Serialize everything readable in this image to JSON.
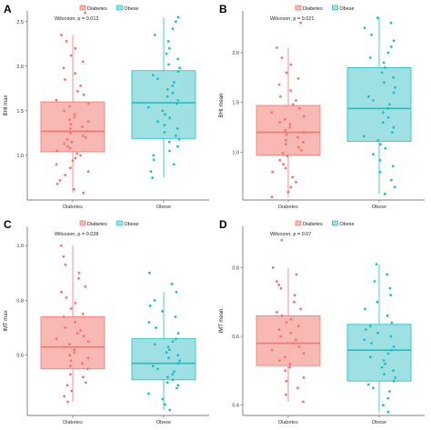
{
  "legend": {
    "entries": [
      {
        "name": "Diabetes",
        "color": "#f3766f"
      },
      {
        "name": "Obese",
        "color": "#1fbfc4"
      }
    ],
    "placement": "top"
  },
  "colors": {
    "diabetes_box_fill": "#f8b8b4",
    "obese_box_fill": "#9fe1e3",
    "diabetes": "#f3766f",
    "obese": "#1fbfc4"
  },
  "chart_data": [
    {
      "panel_label": "A",
      "type": "box",
      "categories": [
        "Diabetes",
        "Obese"
      ],
      "ylabel": "BHI max",
      "ylim": [
        0.5,
        2.62
      ],
      "yticks": [
        1.0,
        1.5,
        2.0,
        2.5
      ],
      "ytick_labels": [
        "1.0",
        "1.5",
        "2.0",
        "2.5"
      ],
      "annotation": "Wilcoxon, p = 0.013",
      "boxes": [
        {
          "name": "Diabetes",
          "whisker_low": 0.58,
          "q1": 1.04,
          "median": 1.27,
          "q3": 1.6,
          "whisker_high": 2.35
        },
        {
          "name": "Obese",
          "whisker_low": 0.75,
          "q1": 1.19,
          "median": 1.59,
          "q3": 1.95,
          "whisker_high": 2.55
        }
      ],
      "points": [
        [
          0.58,
          0.62,
          0.68,
          0.72,
          0.78,
          0.82,
          0.86,
          0.9,
          0.94,
          0.97,
          1.0,
          1.02,
          1.05,
          1.08,
          1.1,
          1.13,
          1.15,
          1.18,
          1.2,
          1.22,
          1.25,
          1.27,
          1.3,
          1.32,
          1.35,
          1.38,
          1.4,
          1.43,
          1.46,
          1.5,
          1.55,
          1.58,
          1.62,
          1.68,
          1.72,
          1.78,
          1.85,
          1.92,
          1.98,
          2.05,
          2.12,
          2.2,
          2.28,
          2.35,
          2.6
        ],
        [
          0.75,
          0.82,
          0.9,
          0.95,
          1.0,
          1.05,
          1.1,
          1.15,
          1.18,
          1.22,
          1.26,
          1.3,
          1.34,
          1.38,
          1.42,
          1.46,
          1.5,
          1.54,
          1.58,
          1.62,
          1.66,
          1.7,
          1.74,
          1.78,
          1.82,
          1.86,
          1.9,
          1.94,
          1.98,
          2.02,
          2.08,
          2.14,
          2.2,
          2.28,
          2.35,
          2.42,
          2.5,
          2.55
        ]
      ]
    },
    {
      "panel_label": "B",
      "type": "box",
      "categories": [
        "Diabetes",
        "Obese"
      ],
      "ylabel": "BHI mean",
      "ylim": [
        0.52,
        2.42
      ],
      "yticks": [
        1.0,
        1.5,
        2.0
      ],
      "ytick_labels": [
        "1.0",
        "1.5",
        "2.0"
      ],
      "annotation": "Wilcoxon, p = 0.021",
      "boxes": [
        {
          "name": "Diabetes",
          "whisker_low": 0.55,
          "q1": 0.97,
          "median": 1.2,
          "q3": 1.47,
          "whisker_high": 2.05
        },
        {
          "name": "Obese",
          "whisker_low": 0.58,
          "q1": 1.11,
          "median": 1.44,
          "q3": 1.85,
          "whisker_high": 2.35
        }
      ],
      "points": [
        [
          0.55,
          0.6,
          0.65,
          0.7,
          0.75,
          0.8,
          0.84,
          0.88,
          0.92,
          0.96,
          0.99,
          1.02,
          1.05,
          1.08,
          1.1,
          1.12,
          1.15,
          1.18,
          1.2,
          1.22,
          1.25,
          1.28,
          1.3,
          1.33,
          1.36,
          1.4,
          1.44,
          1.48,
          1.52,
          1.56,
          1.62,
          1.68,
          1.74,
          1.8,
          1.88,
          1.95,
          2.05,
          2.3
        ],
        [
          0.58,
          0.65,
          0.72,
          0.8,
          0.86,
          0.92,
          0.98,
          1.04,
          1.08,
          1.12,
          1.16,
          1.2,
          1.25,
          1.3,
          1.35,
          1.4,
          1.44,
          1.48,
          1.52,
          1.56,
          1.6,
          1.65,
          1.7,
          1.75,
          1.8,
          1.85,
          1.9,
          1.95,
          2.0,
          2.06,
          2.12,
          2.18,
          2.25,
          2.3,
          2.35
        ]
      ]
    },
    {
      "panel_label": "C",
      "type": "box",
      "categories": [
        "Diabetes",
        "Obese"
      ],
      "ylabel": "IMT max",
      "ylim": [
        0.38,
        1.07
      ],
      "yticks": [
        0.6,
        0.8,
        1.0
      ],
      "ytick_labels": [
        "0.6",
        "0.8",
        "1.0"
      ],
      "annotation": "Wilcoxon, p = 0.028",
      "boxes": [
        {
          "name": "Diabetes",
          "whisker_low": 0.43,
          "q1": 0.55,
          "median": 0.63,
          "q3": 0.74,
          "whisker_high": 1.0
        },
        {
          "name": "Obese",
          "whisker_low": 0.4,
          "q1": 0.51,
          "median": 0.57,
          "q3": 0.66,
          "whisker_high": 0.83
        }
      ],
      "points": [
        [
          0.43,
          0.45,
          0.47,
          0.49,
          0.5,
          0.52,
          0.53,
          0.55,
          0.56,
          0.57,
          0.58,
          0.59,
          0.6,
          0.61,
          0.62,
          0.63,
          0.64,
          0.65,
          0.66,
          0.67,
          0.68,
          0.69,
          0.7,
          0.72,
          0.74,
          0.75,
          0.77,
          0.79,
          0.81,
          0.83,
          0.85,
          0.88,
          0.9,
          0.93,
          0.96,
          1.0
        ],
        [
          0.4,
          0.42,
          0.44,
          0.46,
          0.48,
          0.49,
          0.5,
          0.51,
          0.52,
          0.53,
          0.54,
          0.55,
          0.56,
          0.57,
          0.58,
          0.59,
          0.6,
          0.61,
          0.62,
          0.63,
          0.64,
          0.65,
          0.66,
          0.68,
          0.7,
          0.72,
          0.74,
          0.76,
          0.78,
          0.8,
          0.83,
          0.86,
          0.9
        ]
      ]
    },
    {
      "panel_label": "D",
      "type": "box",
      "categories": [
        "Diabetes",
        "Obese"
      ],
      "ylabel": "IMT mean",
      "ylim": [
        0.37,
        0.92
      ],
      "yticks": [
        0.4,
        0.6,
        0.8
      ],
      "ytick_labels": [
        "0.4",
        "0.6",
        "0.8"
      ],
      "annotation": "Wilcoxon, p = 0.07",
      "boxes": [
        {
          "name": "Diabetes",
          "whisker_low": 0.41,
          "q1": 0.515,
          "median": 0.58,
          "q3": 0.66,
          "whisker_high": 0.8
        },
        {
          "name": "Obese",
          "whisker_low": 0.38,
          "q1": 0.47,
          "median": 0.56,
          "q3": 0.635,
          "whisker_high": 0.81
        }
      ],
      "points": [
        [
          0.41,
          0.43,
          0.45,
          0.47,
          0.48,
          0.5,
          0.51,
          0.52,
          0.53,
          0.54,
          0.55,
          0.56,
          0.57,
          0.58,
          0.59,
          0.6,
          0.61,
          0.62,
          0.63,
          0.64,
          0.65,
          0.66,
          0.67,
          0.68,
          0.7,
          0.72,
          0.74,
          0.75,
          0.76,
          0.78,
          0.8,
          0.88
        ],
        [
          0.38,
          0.4,
          0.42,
          0.44,
          0.45,
          0.46,
          0.47,
          0.48,
          0.49,
          0.5,
          0.51,
          0.52,
          0.53,
          0.54,
          0.55,
          0.56,
          0.57,
          0.58,
          0.59,
          0.6,
          0.61,
          0.62,
          0.63,
          0.64,
          0.66,
          0.68,
          0.7,
          0.72,
          0.74,
          0.76,
          0.78,
          0.81
        ]
      ]
    }
  ]
}
